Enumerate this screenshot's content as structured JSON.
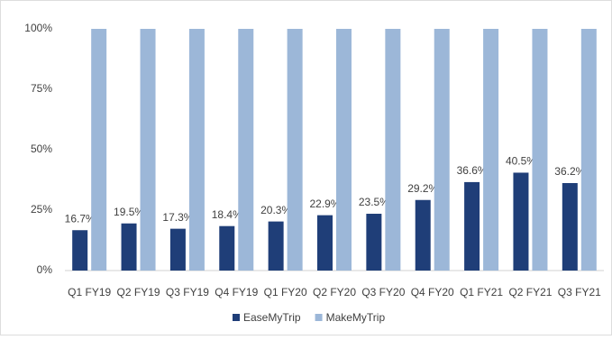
{
  "chart_data": {
    "type": "bar",
    "categories": [
      "Q1 FY19",
      "Q2 FY19",
      "Q3 FY19",
      "Q4 FY19",
      "Q1 FY20",
      "Q2 FY20",
      "Q3 FY20",
      "Q4 FY20",
      "Q1 FY21",
      "Q2 FY21",
      "Q3 FY21"
    ],
    "series": [
      {
        "name": "EaseMyTrip",
        "color": "#1f3e78",
        "values": [
          16.7,
          19.5,
          17.3,
          18.4,
          20.3,
          22.9,
          23.5,
          29.2,
          36.6,
          40.5,
          36.2
        ],
        "value_labels": [
          "16.7%",
          "19.5%",
          "17.3%",
          "18.4%",
          "20.3%",
          "22.9%",
          "23.5%",
          "29.2%",
          "36.6%",
          "40.5%",
          "36.2%"
        ]
      },
      {
        "name": "MakeMyTrip",
        "color": "#9cb7d8",
        "values": [
          100,
          100,
          100,
          100,
          100,
          100,
          100,
          100,
          100,
          100,
          100
        ]
      }
    ],
    "ylim": [
      0,
      100
    ],
    "yticks": [
      {
        "value": 0,
        "label": "0%"
      },
      {
        "value": 25,
        "label": "25%"
      },
      {
        "value": 50,
        "label": "50%"
      },
      {
        "value": 75,
        "label": "75%"
      },
      {
        "value": 100,
        "label": "100%"
      }
    ],
    "grid": false,
    "legend": "bottom"
  }
}
